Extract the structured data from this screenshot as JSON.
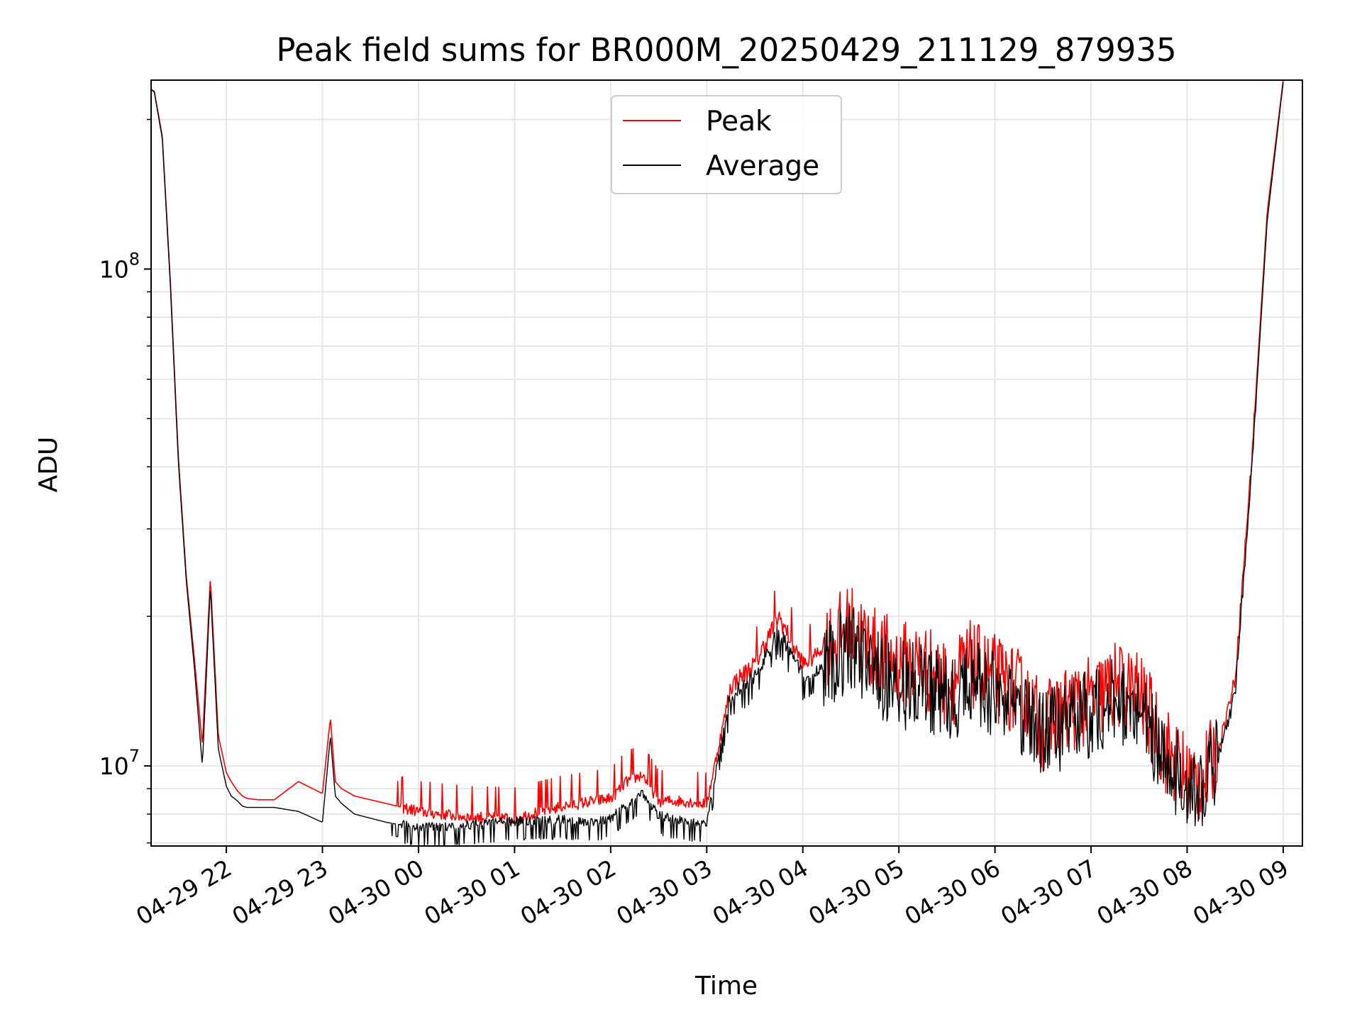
{
  "chart_data": {
    "type": "line",
    "title": "Peak field sums for BR000M_20250429_211129_879935",
    "xlabel": "Time",
    "ylabel": "ADU",
    "yscale": "log",
    "xlim": [
      "04-29 21:13",
      "04-30 09:12"
    ],
    "ylim": [
      6900000,
      240000000
    ],
    "grid": true,
    "legend_position": "top-center",
    "x_ticks": [
      "04-29 22",
      "04-29 23",
      "04-30 00",
      "04-30 01",
      "04-30 02",
      "04-30 03",
      "04-30 04",
      "04-30 05",
      "04-30 06",
      "04-30 07",
      "04-30 08",
      "04-30 09"
    ],
    "y_ticks": [
      {
        "value": 10000000,
        "base": "10",
        "exp": "7"
      },
      {
        "value": 100000000,
        "base": "10",
        "exp": "8"
      }
    ],
    "x": [
      "04-29 21:13",
      "04-29 21:15",
      "04-29 21:20",
      "04-29 21:25",
      "04-29 21:30",
      "04-29 21:35",
      "04-29 21:40",
      "04-29 21:45",
      "04-29 21:50",
      "04-29 21:55",
      "04-29 22:00",
      "04-29 22:03",
      "04-29 22:07",
      "04-29 22:10",
      "04-29 22:13",
      "04-29 22:20",
      "04-29 22:30",
      "04-29 22:45",
      "04-29 23:00",
      "04-29 23:05",
      "04-29 23:08",
      "04-29 23:12",
      "04-29 23:20",
      "04-29 23:40",
      "04-30 00:00",
      "04-30 00:30",
      "04-30 01:00",
      "04-30 01:30",
      "04-30 01:50",
      "04-30 02:00",
      "04-30 02:10",
      "04-30 02:20",
      "04-30 02:30",
      "04-30 02:45",
      "04-30 03:00",
      "04-30 03:10",
      "04-30 03:15",
      "04-30 03:30",
      "04-30 03:45",
      "04-30 04:00",
      "04-30 04:15",
      "04-30 04:30",
      "04-30 04:45",
      "04-30 05:00",
      "04-30 05:15",
      "04-30 05:30",
      "04-30 05:45",
      "04-30 06:00",
      "04-30 06:15",
      "04-30 06:30",
      "04-30 06:45",
      "04-30 07:00",
      "04-30 07:15",
      "04-30 07:30",
      "04-30 07:45",
      "04-30 08:00",
      "04-30 08:10",
      "04-30 08:20",
      "04-30 08:30",
      "04-30 08:40",
      "04-30 08:50",
      "04-30 09:00"
    ],
    "series": [
      {
        "name": "Peak",
        "color": "#ff0000",
        "values": [
          230000000,
          228000000,
          185000000,
          95000000,
          42000000,
          24000000,
          16500000,
          11000000,
          24000000,
          11500000,
          9700000,
          9300000,
          8900000,
          8700000,
          8600000,
          8550000,
          8550000,
          9300000,
          8800000,
          12500000,
          9300000,
          9000000,
          8700000,
          8400000,
          8100000,
          7900000,
          7850000,
          8300000,
          8500000,
          8600000,
          9300000,
          9600000,
          8500000,
          8500000,
          8400000,
          12000000,
          14500000,
          16000000,
          20000000,
          16000000,
          17500000,
          19000000,
          17000000,
          16000000,
          16000000,
          14500000,
          16000000,
          15000000,
          14000000,
          12000000,
          13000000,
          13500000,
          14500000,
          14000000,
          11000000,
          9500000,
          9300000,
          11000000,
          15000000,
          40000000,
          130000000,
          240000000
        ]
      },
      {
        "name": "Average",
        "color": "#000000",
        "values": [
          230000000,
          227000000,
          183000000,
          93000000,
          41000000,
          23500000,
          15800000,
          10000000,
          23000000,
          10800000,
          9100000,
          8700000,
          8500000,
          8300000,
          8250000,
          8250000,
          8250000,
          8100000,
          7700000,
          11500000,
          8700000,
          8400000,
          8000000,
          7700000,
          7500000,
          7550000,
          7700000,
          7750000,
          7650000,
          7800000,
          8300000,
          8800000,
          7900000,
          7700000,
          7600000,
          11500000,
          13800000,
          15000000,
          18500000,
          15000000,
          16000000,
          17500000,
          15500000,
          14500000,
          14500000,
          13500000,
          14800000,
          13800000,
          13000000,
          11500000,
          12200000,
          12800000,
          13500000,
          13200000,
          10500000,
          9200000,
          9000000,
          10500000,
          14000000,
          38000000,
          125000000,
          238000000
        ]
      }
    ]
  }
}
